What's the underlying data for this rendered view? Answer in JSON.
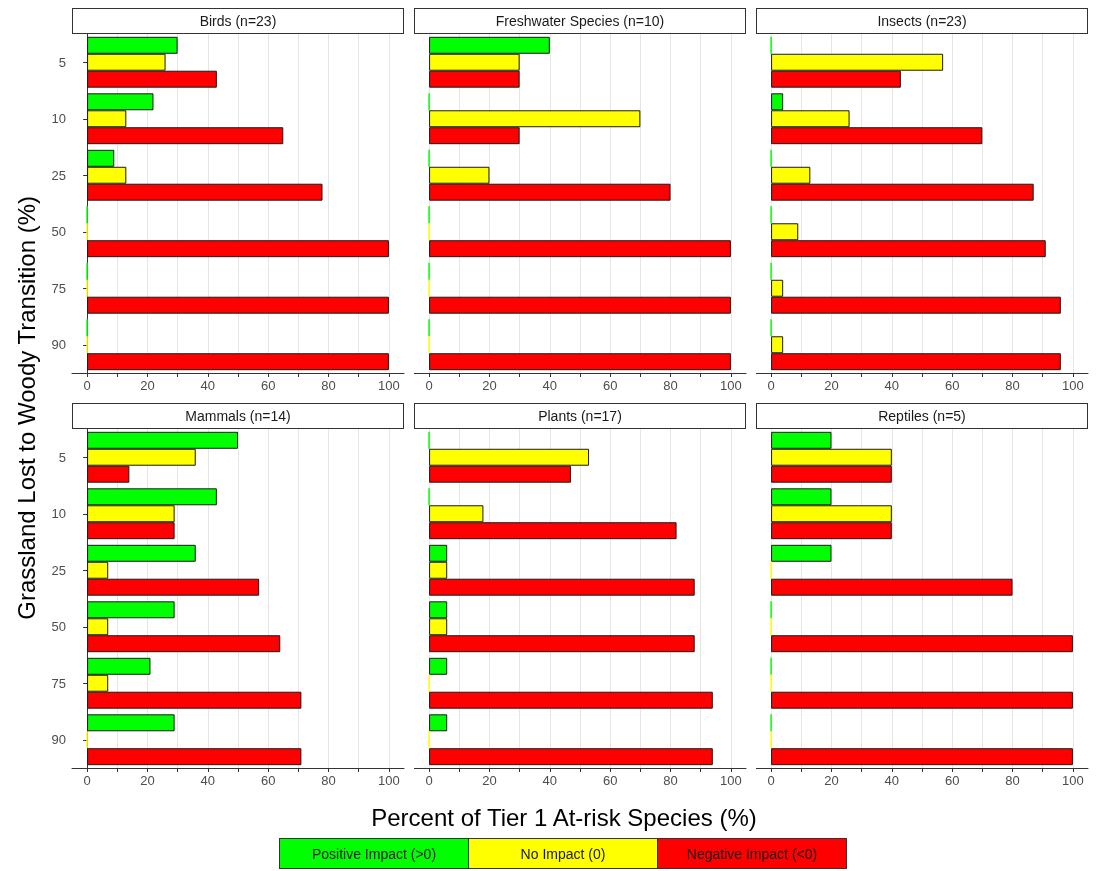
{
  "chart_data": [
    {
      "type": "bar",
      "orientation": "horizontal",
      "title": "Birds (n=23)",
      "ylabel": "Grassland Lost to Woody Transition (%)",
      "categories": [
        "5",
        "10",
        "25",
        "50",
        "75",
        "90"
      ],
      "series": [
        {
          "name": "Positive Impact (>0)",
          "color": "#00ff00",
          "values": [
            30,
            22,
            9,
            0,
            0,
            0
          ]
        },
        {
          "name": "No Impact (0)",
          "color": "#ffff00",
          "values": [
            26,
            13,
            13,
            0,
            0,
            0
          ]
        },
        {
          "name": "Negative Impact (<0)",
          "color": "#ff0000",
          "values": [
            43,
            65,
            78,
            100,
            100,
            100
          ]
        }
      ],
      "xlim": [
        -5,
        105
      ],
      "xticks": [
        0,
        {
          "value": 10,
          "label": null
        },
        20,
        {
          "value": 30,
          "label": null
        },
        40,
        {
          "value": 50,
          "label": null
        },
        60,
        {
          "value": 70,
          "label": null
        },
        80,
        {
          "value": 90,
          "label": null
        },
        100
      ],
      "grid": "x",
      "legend": "bottom"
    },
    {
      "type": "bar",
      "orientation": "horizontal",
      "title": "Freshwater Species (n=10)",
      "categories": [
        "5",
        "10",
        "25",
        "50",
        "75",
        "90"
      ],
      "series": [
        {
          "color": "#00ff00",
          "values": [
            40,
            0,
            0,
            0,
            0,
            0
          ]
        },
        {
          "color": "#ffff00",
          "values": [
            30,
            70,
            20,
            0,
            0,
            0
          ]
        },
        {
          "color": "#ff0000",
          "values": [
            30,
            30,
            80,
            100,
            100,
            100
          ]
        }
      ],
      "xlim": [
        -5,
        105
      ],
      "xticks": [
        0,
        {
          "value": 10,
          "label": null
        },
        20,
        {
          "value": 30,
          "label": null
        },
        40,
        {
          "value": 50,
          "label": null
        },
        60,
        {
          "value": 70,
          "label": null
        },
        80,
        {
          "value": 90,
          "label": null
        },
        100
      ],
      "grid": "x",
      "tick_labels": "x"
    },
    {
      "type": "bar",
      "orientation": "horizontal",
      "title": "Insects (n=23)",
      "categories": [
        "5",
        "10",
        "25",
        "50",
        "75",
        "90"
      ],
      "series": [
        {
          "color": "#00ff00",
          "values": [
            0,
            4,
            0,
            0,
            0,
            0
          ]
        },
        {
          "color": "#ffff00",
          "values": [
            57,
            26,
            13,
            9,
            4,
            4
          ]
        },
        {
          "color": "#ff0000",
          "values": [
            43,
            70,
            87,
            91,
            96,
            96
          ]
        }
      ],
      "xlim": [
        -5,
        105
      ],
      "xticks": [
        0,
        {
          "value": 10,
          "label": null
        },
        20,
        {
          "value": 30,
          "label": null
        },
        40,
        {
          "value": 50,
          "label": null
        },
        60,
        {
          "value": 70,
          "label": null
        },
        80,
        {
          "value": 90,
          "label": null
        },
        100
      ],
      "grid": "x",
      "tick_labels": "x"
    },
    {
      "type": "bar",
      "orientation": "horizontal",
      "title": "Mammals (n=14)",
      "categories": [
        "5",
        "10",
        "25",
        "50",
        "75",
        "90"
      ],
      "series": [
        {
          "color": "#00ff00",
          "values": [
            50,
            43,
            36,
            29,
            21,
            29
          ]
        },
        {
          "color": "#ffff00",
          "values": [
            36,
            29,
            7,
            7,
            7,
            0
          ]
        },
        {
          "color": "#ff0000",
          "values": [
            14,
            29,
            57,
            64,
            71,
            71
          ]
        }
      ],
      "xlim": [
        -5,
        105
      ],
      "xticks": [
        0,
        {
          "value": 10,
          "label": null
        },
        20,
        {
          "value": 30,
          "label": null
        },
        40,
        {
          "value": 50,
          "label": null
        },
        60,
        {
          "value": 70,
          "label": null
        },
        80,
        {
          "value": 90,
          "label": null
        },
        100
      ],
      "grid": "x"
    },
    {
      "type": "bar",
      "orientation": "horizontal",
      "title": "Plants (n=17)",
      "xlabel": "Percent of Tier 1 At-risk Species (%)",
      "categories": [
        "5",
        "10",
        "25",
        "50",
        "75",
        "90"
      ],
      "series": [
        {
          "color": "#00ff00",
          "values": [
            0,
            0,
            6,
            6,
            6,
            6
          ]
        },
        {
          "color": "#ffff00",
          "values": [
            53,
            18,
            6,
            6,
            0,
            0
          ]
        },
        {
          "color": "#ff0000",
          "values": [
            47,
            82,
            88,
            88,
            94,
            94
          ]
        }
      ],
      "xlim": [
        -5,
        105
      ],
      "xticks": [
        0,
        {
          "value": 10,
          "label": null
        },
        20,
        {
          "value": 30,
          "label": null
        },
        40,
        {
          "value": 50,
          "label": null
        },
        60,
        {
          "value": 70,
          "label": null
        },
        80,
        {
          "value": 90,
          "label": null
        },
        100
      ],
      "grid": "x",
      "tick_labels": "x"
    },
    {
      "type": "bar",
      "orientation": "horizontal",
      "title": "Reptiles (n=5)",
      "categories": [
        "5",
        "10",
        "25",
        "50",
        "75",
        "90"
      ],
      "series": [
        {
          "color": "#00ff00",
          "values": [
            20,
            20,
            20,
            0,
            0,
            0
          ]
        },
        {
          "color": "#ffff00",
          "values": [
            40,
            40,
            0,
            0,
            0,
            0
          ]
        },
        {
          "color": "#ff0000",
          "values": [
            40,
            40,
            80,
            100,
            100,
            100
          ]
        }
      ],
      "xlim": [
        -5,
        105
      ],
      "xticks": [
        0,
        {
          "value": 10,
          "label": null
        },
        20,
        {
          "value": 30,
          "label": null
        },
        40,
        {
          "value": 50,
          "label": null
        },
        60,
        {
          "value": 70,
          "label": null
        },
        80,
        {
          "value": 90,
          "label": null
        },
        100
      ],
      "grid": "x",
      "tick_labels": "x"
    }
  ]
}
